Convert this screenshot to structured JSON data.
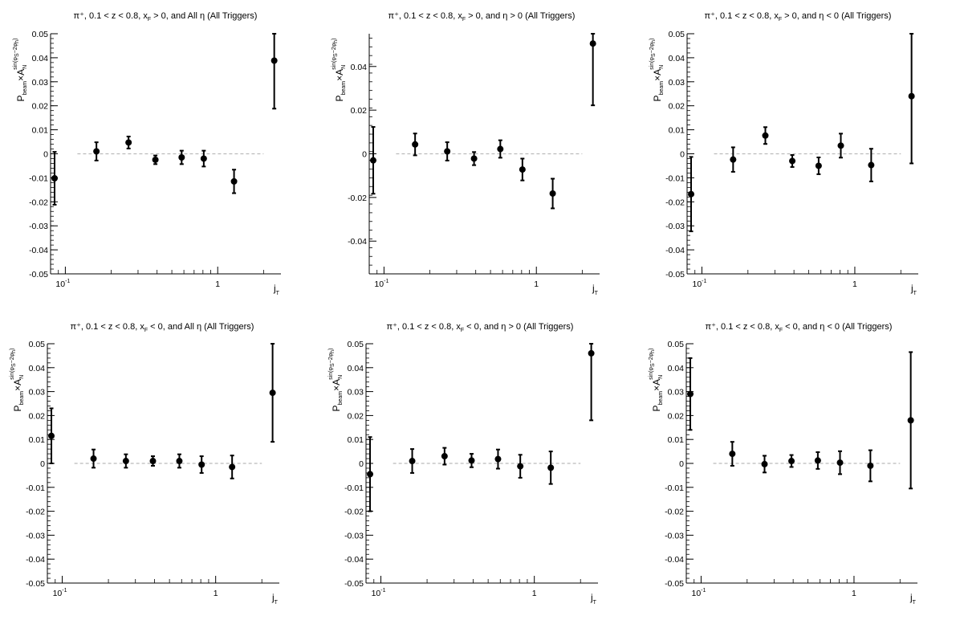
{
  "figure": {
    "width": 1196,
    "height": 772,
    "panel_count": 6,
    "layout": "2 rows x 3 columns",
    "marker_color": "#000000",
    "zero_line_color": "#bbbbbb"
  },
  "chart_data": [
    {
      "type": "scatter",
      "title": "π⁺, 0.1 < z < 0.8, x_F > 0, and All η (All Triggers)",
      "xlabel": "j_T",
      "ylabel": "P_beam×A_N^{sin(φ_S−2φ_h)}",
      "xscale": "log",
      "xlim": [
        0.08,
        2.6
      ],
      "ylim": [
        -0.05,
        0.05
      ],
      "yticks": [
        -0.05,
        -0.04,
        -0.03,
        -0.02,
        -0.01,
        0,
        0.01,
        0.02,
        0.03,
        0.04,
        0.05
      ],
      "yticklabels": [
        "-0.05",
        "-0.04",
        "-0.03",
        "-0.02",
        "-0.01",
        "0",
        "0.01",
        "0.02",
        "0.03",
        "0.04",
        "0.05"
      ],
      "xticklabels": [
        "10⁻¹",
        "1"
      ],
      "zero_line": true,
      "grid": false,
      "x": [
        0.085,
        0.16,
        0.26,
        0.39,
        0.58,
        0.81,
        1.28,
        2.35
      ],
      "y": [
        -0.0102,
        0.001,
        0.0047,
        -0.0025,
        -0.0015,
        -0.002,
        -0.0115,
        0.0388
      ],
      "yerr": [
        0.011,
        0.0038,
        0.0025,
        0.0018,
        0.0028,
        0.0033,
        0.0049,
        0.02
      ]
    },
    {
      "type": "scatter",
      "title": "π⁺, 0.1 < z < 0.8, x_F > 0, and η > 0 (All Triggers)",
      "xlabel": "j_T",
      "ylabel": "P_beam×A_N^{sin(φ_S−2φ_h)}",
      "xscale": "log",
      "xlim": [
        0.08,
        2.6
      ],
      "ylim": [
        -0.055,
        0.055
      ],
      "yticks": [
        -0.04,
        -0.02,
        0,
        0.02,
        0.04
      ],
      "yticklabels": [
        "-0.04",
        "-0.02",
        "0",
        "0.02",
        "0.04"
      ],
      "xticklabels": [
        "10⁻¹",
        "1"
      ],
      "zero_line": true,
      "grid": false,
      "x": [
        0.085,
        0.16,
        0.26,
        0.39,
        0.58,
        0.81,
        1.28,
        2.35
      ],
      "y": [
        -0.003,
        0.0043,
        0.0011,
        -0.0022,
        0.0022,
        -0.0072,
        -0.0182,
        0.0505
      ],
      "yerr": [
        0.0153,
        0.005,
        0.0042,
        0.003,
        0.004,
        0.005,
        0.0068,
        0.0283
      ]
    },
    {
      "type": "scatter",
      "title": "π⁺, 0.1 < z < 0.8, x_F > 0, and η < 0 (All Triggers)",
      "xlabel": "j_T",
      "ylabel": "P_beam×A_N^{sin(φ_S−2φ_h)}",
      "xscale": "log",
      "xlim": [
        0.08,
        2.6
      ],
      "ylim": [
        -0.05,
        0.05
      ],
      "yticks": [
        -0.05,
        -0.04,
        -0.03,
        -0.02,
        -0.01,
        0,
        0.01,
        0.02,
        0.03,
        0.04,
        0.05
      ],
      "yticklabels": [
        "-0.05",
        "-0.04",
        "-0.03",
        "-0.02",
        "-0.01",
        "0",
        "0.01",
        "0.02",
        "0.03",
        "0.04",
        "0.05"
      ],
      "xticklabels": [
        "10⁻¹",
        "1"
      ],
      "zero_line": true,
      "grid": false,
      "x": [
        0.085,
        0.16,
        0.26,
        0.39,
        0.58,
        0.81,
        1.28,
        2.35
      ],
      "y": [
        -0.0168,
        -0.0024,
        0.0076,
        -0.003,
        -0.005,
        0.0034,
        -0.0047,
        0.024
      ],
      "yerr": [
        0.0155,
        0.0051,
        0.0035,
        0.0025,
        0.0035,
        0.005,
        0.0068,
        0.028
      ]
    },
    {
      "type": "scatter",
      "title": "π⁺, 0.1 < z < 0.8, x_F < 0, and All η (All Triggers)",
      "xlabel": "j_T",
      "ylabel": "P_beam×A_N^{sin(φ_S−2φ_h)}",
      "xscale": "log",
      "xlim": [
        0.08,
        2.6
      ],
      "ylim": [
        -0.05,
        0.05
      ],
      "yticks": [
        -0.05,
        -0.04,
        -0.03,
        -0.02,
        -0.01,
        0,
        0.01,
        0.02,
        0.03,
        0.04,
        0.05
      ],
      "yticklabels": [
        "-0.05",
        "-0.04",
        "-0.03",
        "-0.02",
        "-0.01",
        "0",
        "0.01",
        "0.02",
        "0.03",
        "0.04",
        "0.05"
      ],
      "xticklabels": [
        "10⁻¹",
        "1"
      ],
      "zero_line": true,
      "grid": false,
      "x": [
        0.085,
        0.16,
        0.26,
        0.39,
        0.58,
        0.81,
        1.28,
        2.35
      ],
      "y": [
        0.0115,
        0.002,
        0.001,
        0.001,
        0.001,
        -0.0005,
        -0.0015,
        0.0295
      ],
      "yerr": [
        0.0115,
        0.0038,
        0.0028,
        0.002,
        0.0028,
        0.0035,
        0.0048,
        0.0205
      ]
    },
    {
      "type": "scatter",
      "title": "π⁺, 0.1 < z < 0.8, x_F < 0, and η > 0 (All Triggers)",
      "xlabel": "j_T",
      "ylabel": "P_beam×A_N^{sin(φ_S−2φ_h)}",
      "xscale": "log",
      "xlim": [
        0.08,
        2.6
      ],
      "ylim": [
        -0.05,
        0.05
      ],
      "yticks": [
        -0.05,
        -0.04,
        -0.03,
        -0.02,
        -0.01,
        0,
        0.01,
        0.02,
        0.03,
        0.04,
        0.05
      ],
      "yticklabels": [
        "-0.05",
        "-0.04",
        "-0.03",
        "-0.02",
        "-0.01",
        "0",
        "0.01",
        "0.02",
        "0.03",
        "0.04",
        "0.05"
      ],
      "xticklabels": [
        "10⁻¹",
        "1"
      ],
      "zero_line": true,
      "grid": false,
      "x": [
        0.085,
        0.16,
        0.26,
        0.39,
        0.58,
        0.81,
        1.28,
        2.35
      ],
      "y": [
        -0.0045,
        0.001,
        0.003,
        0.0012,
        0.0018,
        -0.0012,
        -0.0018,
        0.046
      ],
      "yerr": [
        0.0155,
        0.005,
        0.0035,
        0.0028,
        0.004,
        0.0048,
        0.0068,
        0.028
      ]
    },
    {
      "type": "scatter",
      "title": "π⁺, 0.1 < z < 0.8, x_F < 0, and η < 0 (All Triggers)",
      "xlabel": "j_T",
      "ylabel": "P_beam×A_N^{sin(φ_S−2φ_h)}",
      "xscale": "log",
      "xlim": [
        0.08,
        2.6
      ],
      "ylim": [
        -0.05,
        0.05
      ],
      "yticks": [
        -0.05,
        -0.04,
        -0.03,
        -0.02,
        -0.01,
        0,
        0.01,
        0.02,
        0.03,
        0.04,
        0.05
      ],
      "yticklabels": [
        "-0.05",
        "-0.04",
        "-0.03",
        "-0.02",
        "-0.01",
        "0",
        "0.01",
        "0.02",
        "0.03",
        "0.04",
        "0.05"
      ],
      "xticklabels": [
        "10⁻¹",
        "1"
      ],
      "zero_line": true,
      "grid": false,
      "x": [
        0.085,
        0.16,
        0.26,
        0.39,
        0.58,
        0.81,
        1.28,
        2.35
      ],
      "y": [
        0.029,
        0.004,
        -0.0003,
        0.001,
        0.0012,
        0.0003,
        -0.001,
        0.018
      ],
      "yerr": [
        0.015,
        0.005,
        0.0035,
        0.0025,
        0.0035,
        0.0048,
        0.0065,
        0.0285
      ]
    }
  ]
}
